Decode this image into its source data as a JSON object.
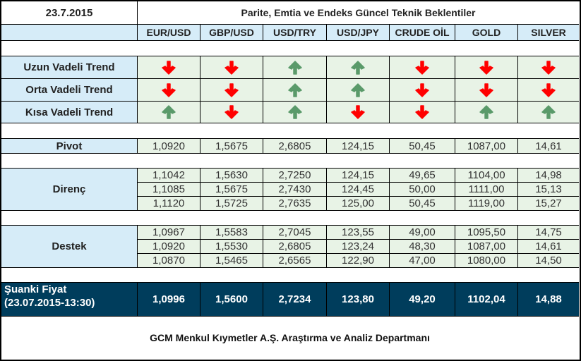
{
  "header": {
    "date": "23.7.2015",
    "title": "Parite, Emtia ve Endeks Güncel Teknik Beklentiler"
  },
  "columns": [
    "EUR/USD",
    "GBP/USD",
    "USD/TRY",
    "USD/JPY",
    "CRUDE OİL",
    "GOLD",
    "SILVER"
  ],
  "trends": {
    "labels": [
      "Uzun Vadeli Trend",
      "Orta Vadeli Trend",
      "Kısa Vadeli Trend"
    ],
    "rows": [
      [
        "down",
        "down",
        "up",
        "up",
        "down",
        "down",
        "down"
      ],
      [
        "down",
        "down",
        "up",
        "up",
        "down",
        "down",
        "down"
      ],
      [
        "up",
        "down",
        "up",
        "down",
        "down",
        "up",
        "up"
      ]
    ],
    "icons": {
      "up": "green-up-arrow-icon",
      "down": "red-down-arrow-icon"
    },
    "colors": {
      "up": "#5a9a6a",
      "down": "#ff0000"
    }
  },
  "pivot": {
    "label": "Pivot",
    "values": [
      "1,0920",
      "1,5675",
      "2,6805",
      "124,15",
      "50,45",
      "1087,00",
      "14,61"
    ]
  },
  "direnc": {
    "label": "Direnç",
    "rows": [
      [
        "1,1042",
        "1,5630",
        "2,7250",
        "124,15",
        "49,65",
        "1104,00",
        "14,98"
      ],
      [
        "1,1085",
        "1,5675",
        "2,7430",
        "124,45",
        "50,00",
        "1111,00",
        "15,13"
      ],
      [
        "1,1120",
        "1,5725",
        "2,7635",
        "125,00",
        "50,45",
        "1119,00",
        "15,27"
      ]
    ]
  },
  "destek": {
    "label": "Destek",
    "rows": [
      [
        "1,0967",
        "1,5583",
        "2,7045",
        "123,55",
        "49,00",
        "1095,50",
        "14,75"
      ],
      [
        "1,0920",
        "1,5530",
        "2,6805",
        "123,24",
        "48,30",
        "1087,00",
        "14,61"
      ],
      [
        "1,0870",
        "1,5465",
        "2,6565",
        "122,90",
        "47,00",
        "1080,00",
        "14,50"
      ]
    ]
  },
  "current": {
    "label_line1": "Şuanki Fiyat",
    "label_line2": "(23.07.2015-13:30)",
    "values": [
      "1,0996",
      "1,5600",
      "2,7234",
      "123,80",
      "49,20",
      "1102,04",
      "14,88"
    ]
  },
  "footer": {
    "text": "GCM Menkul Kıymetler A.Ş. Araştırma ve Analiz Departmanı"
  },
  "colors": {
    "label_bg": "#d6ecf8",
    "value_bg": "#e8f3e6",
    "current_bg": "#003d5c"
  }
}
